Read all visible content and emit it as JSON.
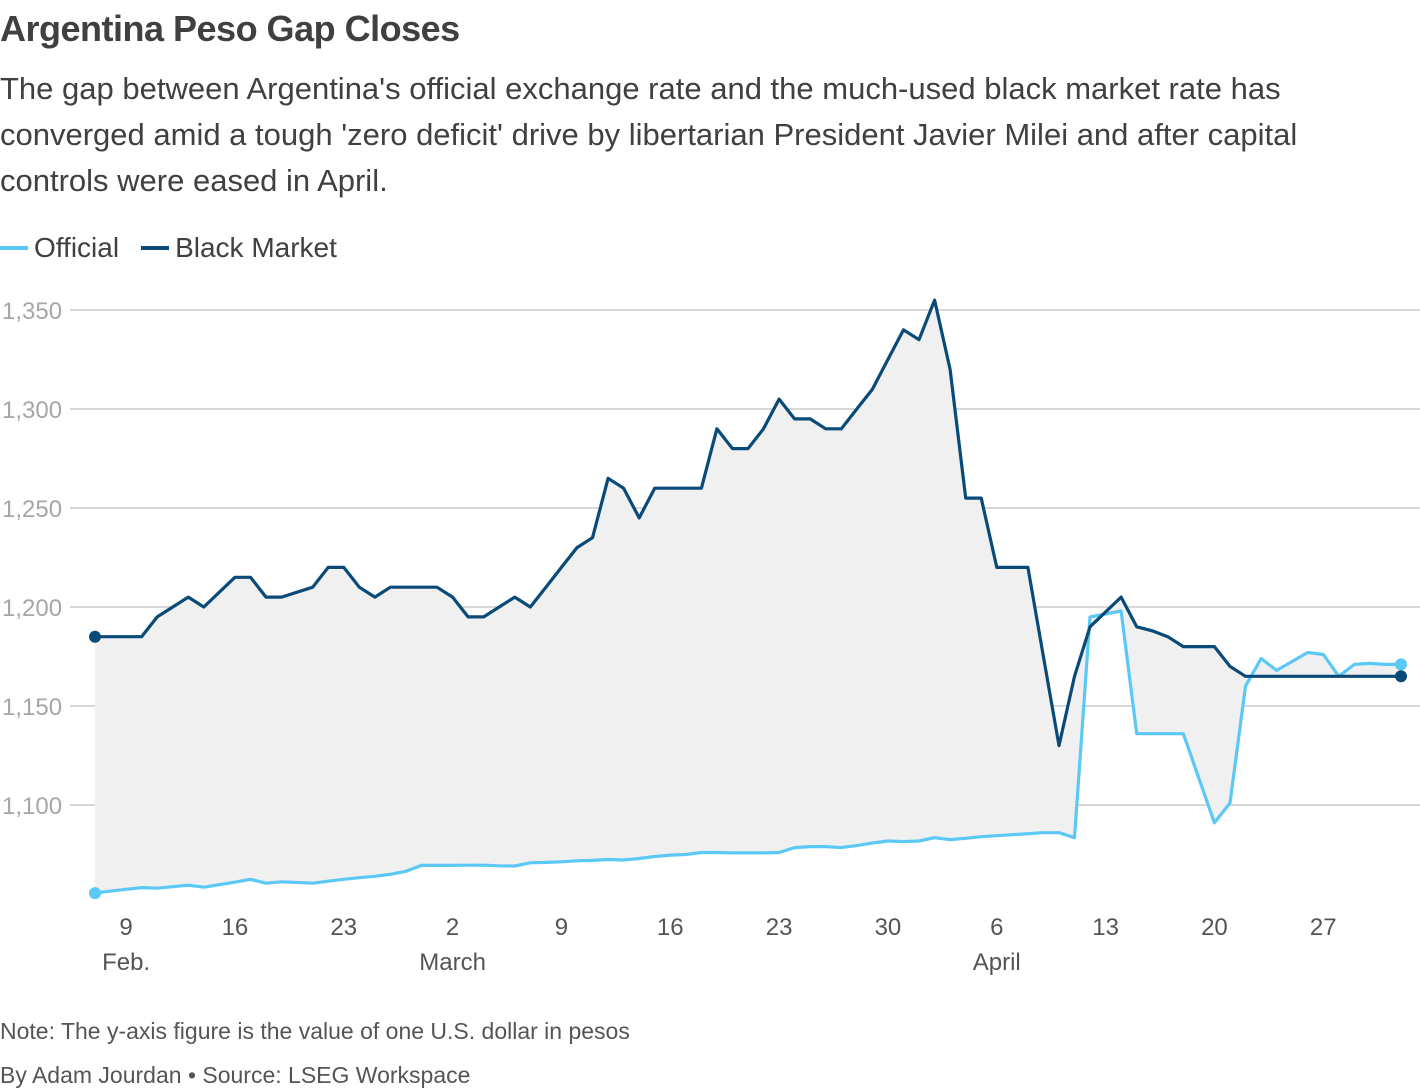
{
  "title": "Argentina Peso Gap Closes",
  "subtitle": "The gap between Argentina's official exchange rate and the much-used black market rate has converged amid a tough 'zero deficit' drive by libertarian President Javier Milei and after capital controls were eased in April.",
  "note": "Note: The y-axis figure is the value of one U.S. dollar in pesos",
  "byline": "By Adam Jourdan • Source: LSEG Workspace",
  "colors": {
    "official": "#5bc8f5",
    "black_market": "#0a4a78",
    "gap_fill": "#f0f0f0",
    "grid": "#cccccc",
    "tick": "#a6a6a6"
  },
  "chart_data": {
    "type": "line",
    "title": "Argentina Peso Gap Closes",
    "xlabel": "",
    "ylabel": "",
    "ylim": [
      1050,
      1365
    ],
    "yticks": [
      1100,
      1150,
      1200,
      1250,
      1300,
      1350
    ],
    "ytick_labels": [
      "1,100",
      "1,150",
      "1,200",
      "1,250",
      "1,300",
      "1,350"
    ],
    "x_start": "2025-02-07",
    "xlim_days": [
      0,
      84
    ],
    "xticks": [
      {
        "day": 2,
        "label": "9",
        "month": "Feb."
      },
      {
        "day": 9,
        "label": "16",
        "month": ""
      },
      {
        "day": 16,
        "label": "23",
        "month": ""
      },
      {
        "day": 23,
        "label": "2",
        "month": "March"
      },
      {
        "day": 30,
        "label": "9",
        "month": ""
      },
      {
        "day": 37,
        "label": "16",
        "month": ""
      },
      {
        "day": 44,
        "label": "23",
        "month": ""
      },
      {
        "day": 51,
        "label": "30",
        "month": ""
      },
      {
        "day": 58,
        "label": "6",
        "month": "April"
      },
      {
        "day": 65,
        "label": "13",
        "month": ""
      },
      {
        "day": 72,
        "label": "20",
        "month": ""
      },
      {
        "day": 79,
        "label": "27",
        "month": ""
      }
    ],
    "series": [
      {
        "name": "Official",
        "x": [
          0,
          1,
          3,
          4,
          6,
          7,
          9,
          10,
          11,
          12,
          14,
          15,
          16,
          17,
          18,
          19,
          20,
          21,
          22,
          23,
          24,
          25,
          26,
          27,
          28,
          29,
          30,
          31,
          32,
          33,
          34,
          35,
          36,
          37,
          38,
          39,
          40,
          41,
          42,
          43,
          44,
          45,
          46,
          47,
          48,
          49,
          50,
          51,
          52,
          53,
          54,
          55,
          56,
          57,
          58,
          59,
          60,
          61,
          62,
          63,
          64,
          66,
          67,
          68,
          69,
          70,
          72,
          73,
          74,
          75,
          76,
          78,
          79,
          80,
          81,
          82,
          83,
          84
        ],
        "values": [
          1055.5,
          1056.5,
          1058.3,
          1058.0,
          1059.5,
          1058.5,
          1061.0,
          1062.5,
          1060.5,
          1061.2,
          1060.5,
          1061.5,
          1062.5,
          1063.3,
          1064.0,
          1065.0,
          1066.5,
          1069.5,
          1069.5,
          1069.5,
          1069.6,
          1069.6,
          1069.3,
          1069.2,
          1070.8,
          1071.0,
          1071.3,
          1071.8,
          1072.0,
          1072.5,
          1072.2,
          1073.0,
          1074.0,
          1074.7,
          1075.0,
          1076.0,
          1076.0,
          1075.8,
          1075.8,
          1075.8,
          1076.0,
          1078.5,
          1079.0,
          1079.0,
          1078.5,
          1079.5,
          1080.8,
          1081.8,
          1081.5,
          1081.8,
          1083.5,
          1082.5,
          1083.2,
          1084.0,
          1084.5,
          1085.0,
          1085.5,
          1086.0,
          1086.0,
          1083.5,
          1195.0,
          1198.0,
          1136.0,
          1136.0,
          1136.0,
          1136.0,
          1091.0,
          1101.0,
          1160.0,
          1174.0,
          1168.0,
          1177.0,
          1176.0,
          1165.0,
          1171.0,
          1171.5,
          1171.0,
          1171.0
        ],
        "color": "#5bc8f5",
        "end_marker": true
      },
      {
        "name": "Black Market",
        "x": [
          0,
          1,
          3,
          4,
          6,
          7,
          9,
          10,
          11,
          12,
          14,
          15,
          16,
          17,
          18,
          19,
          20,
          21,
          22,
          23,
          24,
          25,
          26,
          27,
          28,
          29,
          30,
          31,
          32,
          33,
          34,
          35,
          36,
          37,
          38,
          39,
          40,
          41,
          42,
          43,
          44,
          45,
          46,
          47,
          48,
          49,
          50,
          51,
          52,
          53,
          54,
          55,
          56,
          57,
          58,
          59,
          60,
          61,
          62,
          63,
          64,
          66,
          67,
          68,
          69,
          70,
          72,
          73,
          74,
          75,
          76,
          78,
          79,
          80,
          81,
          82,
          83,
          84
        ],
        "values": [
          1185,
          1185,
          1185,
          1195,
          1205,
          1200,
          1215,
          1215,
          1205,
          1205,
          1210,
          1220,
          1220,
          1210,
          1205,
          1210,
          1210,
          1210,
          1210,
          1205,
          1195,
          1195,
          1200,
          1205,
          1200,
          1210,
          1220,
          1230,
          1235,
          1265,
          1260,
          1245,
          1260,
          1260,
          1260,
          1260,
          1290,
          1280,
          1280,
          1290,
          1305,
          1295,
          1295,
          1290,
          1290,
          1300,
          1310,
          1325,
          1340,
          1335,
          1355,
          1320,
          1255,
          1255,
          1220,
          1220,
          1220,
          1175,
          1130,
          1165,
          1190,
          1205,
          1190,
          1188,
          1185,
          1180,
          1180,
          1170,
          1165,
          1165,
          1165,
          1165,
          1165,
          1165,
          1165,
          1165,
          1165,
          1165
        ],
        "color": "#0a4a78",
        "end_marker": true
      }
    ]
  }
}
